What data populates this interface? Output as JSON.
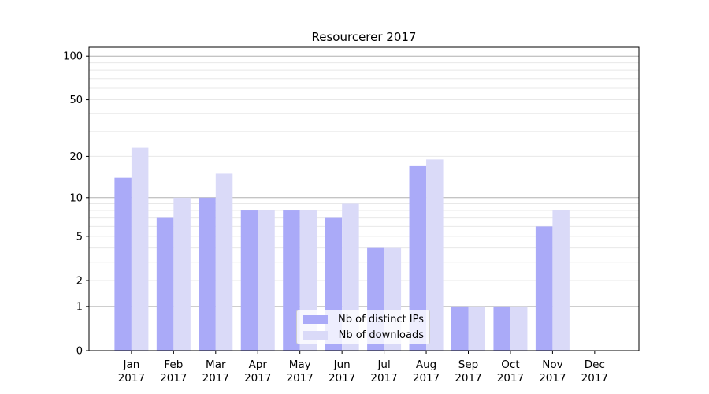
{
  "chart_data": {
    "type": "bar",
    "title": "Resourcerer 2017",
    "categories": [
      "Jan",
      "Feb",
      "Mar",
      "Apr",
      "May",
      "Jun",
      "Jul",
      "Aug",
      "Sep",
      "Oct",
      "Nov",
      "Dec"
    ],
    "x_sublabel": "2017",
    "series": [
      {
        "name": "Nb of distinct IPs",
        "color": "#aaaaf8",
        "values": [
          14,
          7,
          10,
          8,
          8,
          7,
          4,
          17,
          1,
          1,
          6,
          0
        ]
      },
      {
        "name": "Nb of downloads",
        "color": "#dadaf8",
        "values": [
          23,
          10,
          15,
          8,
          8,
          9,
          4,
          19,
          1,
          1,
          8,
          0
        ]
      }
    ],
    "xlabel": "",
    "ylabel": "",
    "yscale": "log1p",
    "ylim": [
      0,
      115
    ],
    "yticks": [
      0,
      1,
      2,
      5,
      10,
      20,
      50,
      100
    ],
    "gridlines": {
      "major": [
        1,
        10,
        100
      ],
      "minor": [
        2,
        3,
        4,
        5,
        6,
        7,
        8,
        9,
        20,
        30,
        40,
        50,
        60,
        70,
        80,
        90
      ]
    },
    "grid": true,
    "legend_position": "lower center"
  },
  "colors": {
    "background": "#ffffff",
    "axis": "#000000",
    "major_grid": "#b0b0b0",
    "minor_grid": "#e8e8e8"
  }
}
